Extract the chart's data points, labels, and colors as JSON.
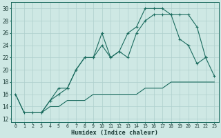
{
  "xlabel": "Humidex (Indice chaleur)",
  "bg_color": "#cee8e4",
  "grid_color": "#aecfcc",
  "line_color": "#1a6b5e",
  "xlim": [
    -0.5,
    23.5
  ],
  "ylim": [
    11.5,
    31
  ],
  "yticks": [
    12,
    14,
    16,
    18,
    20,
    22,
    24,
    26,
    28,
    30
  ],
  "xticks": [
    0,
    1,
    2,
    3,
    4,
    5,
    6,
    7,
    8,
    9,
    10,
    11,
    12,
    13,
    14,
    15,
    16,
    17,
    18,
    19,
    20,
    21,
    22,
    23
  ],
  "line1_x": [
    0,
    1,
    2,
    3,
    4,
    5,
    6,
    7,
    8,
    9,
    10,
    11,
    12,
    13,
    14,
    15,
    16,
    17,
    18,
    19,
    20,
    21,
    22
  ],
  "line1_y": [
    16,
    13,
    13,
    13,
    15,
    17,
    17,
    20,
    22,
    22,
    24,
    22,
    23,
    26,
    27,
    30,
    30,
    30,
    29,
    29,
    29,
    27,
    22
  ],
  "line2_x": [
    3,
    4,
    5,
    6,
    7,
    8,
    9,
    10,
    11,
    12,
    13,
    14,
    15,
    16,
    17,
    18,
    19,
    20,
    21,
    22,
    23
  ],
  "line2_y": [
    13,
    15,
    16,
    17,
    20,
    22,
    22,
    26,
    22,
    23,
    22,
    26,
    28,
    29,
    29,
    29,
    25,
    24,
    21,
    22,
    19
  ],
  "line3_x": [
    0,
    1,
    2,
    3,
    4,
    5,
    6,
    7,
    8,
    9,
    10,
    11,
    12,
    13,
    14,
    15,
    16,
    17,
    18,
    19,
    20,
    21,
    22,
    23
  ],
  "line3_y": [
    16,
    13,
    13,
    13,
    14,
    14,
    15,
    15,
    15,
    16,
    16,
    16,
    16,
    16,
    16,
    17,
    17,
    17,
    18,
    18,
    18,
    18,
    18,
    18
  ]
}
